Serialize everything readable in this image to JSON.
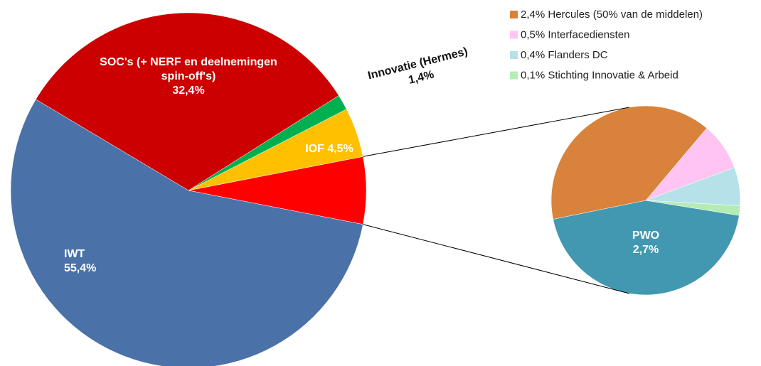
{
  "chart_data": {
    "type": "pie-of-pie",
    "main": {
      "categories": [
        "IWT",
        "SOC's (+ NERF en deelnemingen  spin-off's)",
        "Innovatie (Hermes)",
        "IOF"
      ],
      "values": [
        55.4,
        32.4,
        1.4,
        4.5
      ],
      "value_labels": [
        "55,4%",
        "32,4%",
        "1,4%",
        "4,5%"
      ],
      "colors": [
        "#4a72a8",
        "#cc0000",
        "#00b050",
        "#ffc000"
      ]
    },
    "other_color": "#ff0000",
    "secondary": {
      "categories": [
        "Hercules (50% van de middelen)",
        "Interfacediensten",
        "Flanders DC",
        "Stichting Innovatie & Arbeid",
        "PWO"
      ],
      "values": [
        2.4,
        0.5,
        0.4,
        0.1,
        2.7
      ],
      "value_labels": [
        "2,4%",
        "0,5%",
        "0,4%",
        "0,1%",
        "2,7%"
      ],
      "colors": [
        "#d9823b",
        "#ffc4f2",
        "#b4e2e8",
        "#b4ecb4",
        "#4198b0"
      ]
    }
  }
}
